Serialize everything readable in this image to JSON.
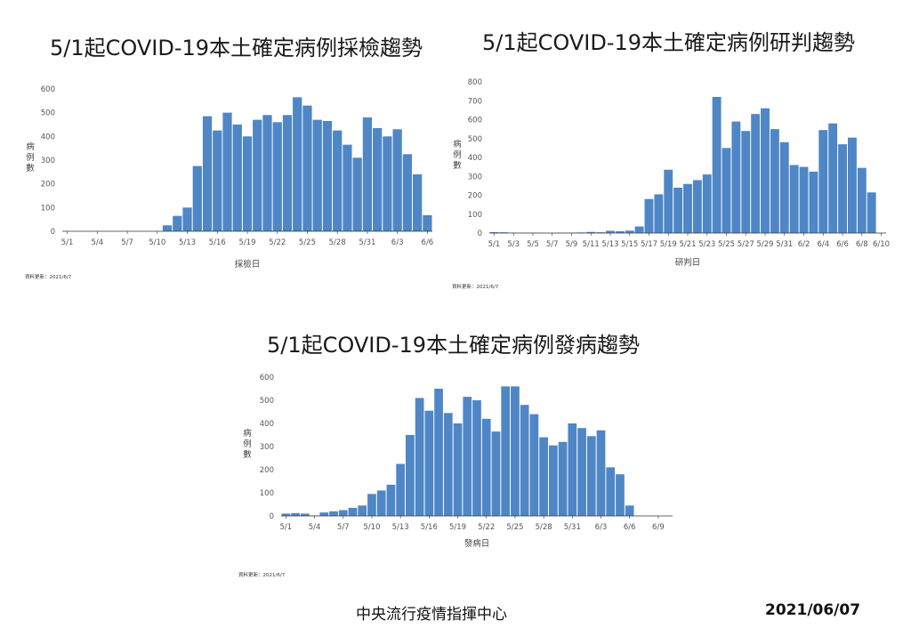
{
  "chart_data": [
    {
      "id": "c1",
      "type": "bar",
      "title": "5/1起COVID-19本土確定病例採檢趨勢",
      "xlabel": "採檢日",
      "ylabel": "病例數",
      "ylim": [
        0,
        600
      ],
      "yticks": [
        0,
        100,
        200,
        300,
        400,
        500,
        600
      ],
      "grid": false,
      "color": "#4f86c6",
      "update_note": "資料更新：2021/6/7",
      "start_month": 5,
      "start_day": 1,
      "tick_every": 3,
      "values": [
        0,
        0,
        0,
        0,
        0,
        0,
        0,
        0,
        0,
        0,
        25,
        65,
        100,
        275,
        485,
        425,
        500,
        450,
        400,
        470,
        490,
        460,
        490,
        565,
        530,
        470,
        465,
        425,
        365,
        310,
        480,
        435,
        400,
        430,
        325,
        240,
        68
      ]
    },
    {
      "id": "c2",
      "type": "bar",
      "title": "5/1起COVID-19本土確定病例研判趨勢",
      "xlabel": "研判日",
      "ylabel": "病例數",
      "ylim": [
        0,
        800
      ],
      "yticks": [
        0,
        100,
        200,
        300,
        400,
        500,
        600,
        700,
        800
      ],
      "grid": false,
      "color": "#4f86c6",
      "update_note": "資料更新：2021/6/7",
      "start_month": 5,
      "start_day": 1,
      "tick_every": 2,
      "values": [
        5,
        4,
        2,
        2,
        2,
        1,
        1,
        2,
        2,
        3,
        6,
        4,
        12,
        10,
        13,
        35,
        180,
        205,
        335,
        240,
        260,
        280,
        310,
        720,
        450,
        590,
        540,
        630,
        660,
        550,
        480,
        360,
        350,
        325,
        545,
        580,
        470,
        505,
        345,
        215,
        0
      ]
    },
    {
      "id": "c3",
      "type": "bar",
      "title": "5/1起COVID-19本土確定病例發病趨勢",
      "xlabel": "發病日",
      "ylabel": "病例數",
      "ylim": [
        0,
        600
      ],
      "yticks": [
        0,
        100,
        200,
        300,
        400,
        500,
        600
      ],
      "grid": false,
      "color": "#4f86c6",
      "update_note": "資料更新：2021/6/7",
      "start_month": 5,
      "start_day": 1,
      "tick_every": 3,
      "values": [
        10,
        12,
        10,
        2,
        15,
        20,
        25,
        35,
        45,
        95,
        110,
        135,
        225,
        350,
        510,
        455,
        550,
        445,
        400,
        515,
        500,
        420,
        365,
        560,
        560,
        480,
        440,
        340,
        305,
        320,
        400,
        380,
        345,
        370,
        210,
        180,
        45,
        0,
        0,
        0,
        0
      ]
    }
  ],
  "footer": {
    "organization": "中央流行疫情指揮中心",
    "date": "2021/06/07"
  }
}
